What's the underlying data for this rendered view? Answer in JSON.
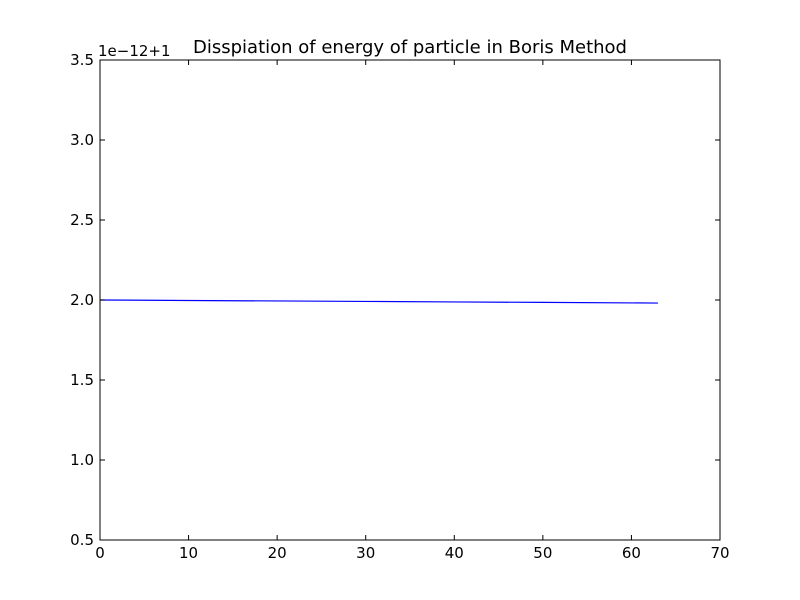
{
  "chart_data": {
    "type": "line",
    "title": "Disspiation of energy of particle in Boris Method",
    "xlabel": "",
    "ylabel": "",
    "y_offset_label": "1e−12+1",
    "xlim": [
      0,
      70
    ],
    "ylim": [
      0.5,
      3.5
    ],
    "x_ticks": [
      "0",
      "10",
      "20",
      "30",
      "40",
      "50",
      "60",
      "70"
    ],
    "y_ticks": [
      "0.5",
      "1.0",
      "1.5",
      "2.0",
      "2.5",
      "3.0",
      "3.5"
    ],
    "grid": false,
    "legend": "none",
    "series": [
      {
        "color": "#0000ff",
        "x": [
          0,
          10,
          20,
          30,
          40,
          50,
          63
        ],
        "y": [
          2.0,
          1.997,
          1.994,
          1.991,
          1.988,
          1.985,
          1.981
        ]
      }
    ]
  }
}
